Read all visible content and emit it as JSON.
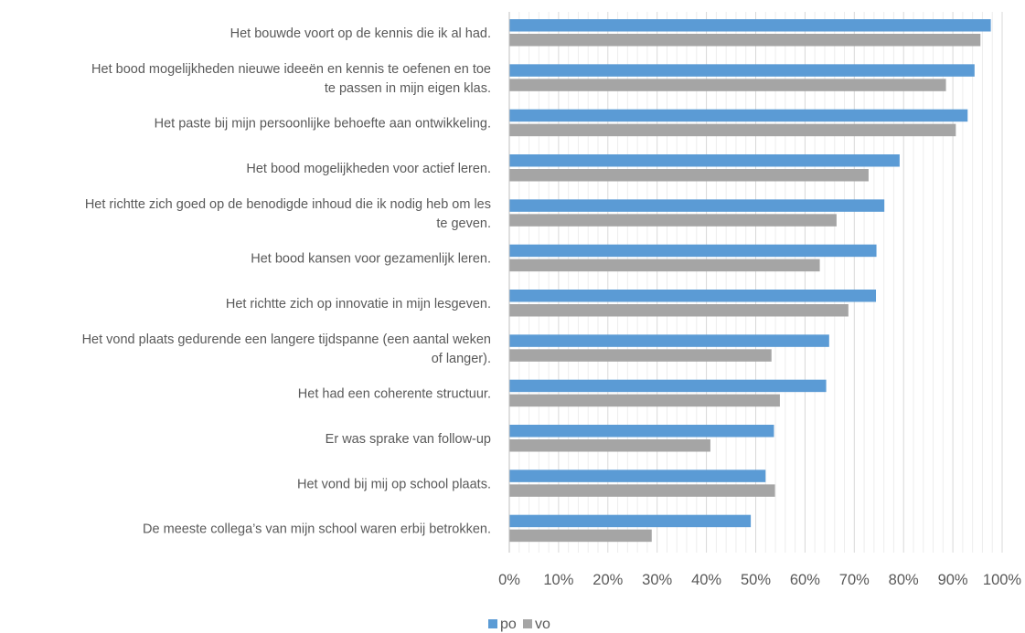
{
  "chart_data": {
    "type": "bar",
    "orientation": "horizontal",
    "categories": [
      [
        "Het bouwde voort op de kennis die ik al had."
      ],
      [
        "Het bood mogelijkheden nieuwe ideeën en kennis te oefenen en toe",
        "te passen in mijn eigen klas."
      ],
      [
        "Het paste bij mijn persoonlijke behoefte aan ontwikkeling."
      ],
      [
        "Het bood mogelijkheden voor actief leren."
      ],
      [
        "Het richtte zich goed op de benodigde inhoud die ik nodig heb om les",
        "te geven."
      ],
      [
        "Het bood kansen voor gezamenlijk leren."
      ],
      [
        "Het richtte zich op innovatie in mijn lesgeven."
      ],
      [
        "Het vond plaats gedurende een langere tijdspanne (een aantal weken",
        "of langer)."
      ],
      [
        "Het had een coherente structuur."
      ],
      [
        "Er was sprake van follow-up"
      ],
      [
        "Het vond bij mij op school plaats."
      ],
      [
        "De meeste collega’s van mijn school waren erbij betrokken."
      ]
    ],
    "series": [
      {
        "name": "po",
        "color": "#5B9BD5",
        "values": [
          97.7,
          94.4,
          93.0,
          79.2,
          76.1,
          74.5,
          74.4,
          64.9,
          64.3,
          53.7,
          52.0,
          49.0
        ]
      },
      {
        "name": "vo",
        "color": "#A5A5A5",
        "values": [
          95.6,
          88.6,
          90.6,
          72.9,
          66.4,
          63.0,
          68.8,
          53.2,
          54.9,
          40.8,
          53.9,
          28.9
        ]
      }
    ],
    "xlim": [
      0,
      100
    ],
    "x_ticks": [
      "0%",
      "10%",
      "20%",
      "30%",
      "40%",
      "50%",
      "60%",
      "70%",
      "80%",
      "90%",
      "100%"
    ],
    "grid": true,
    "legend_position": "bottom",
    "title": "",
    "xlabel": "",
    "ylabel": ""
  }
}
